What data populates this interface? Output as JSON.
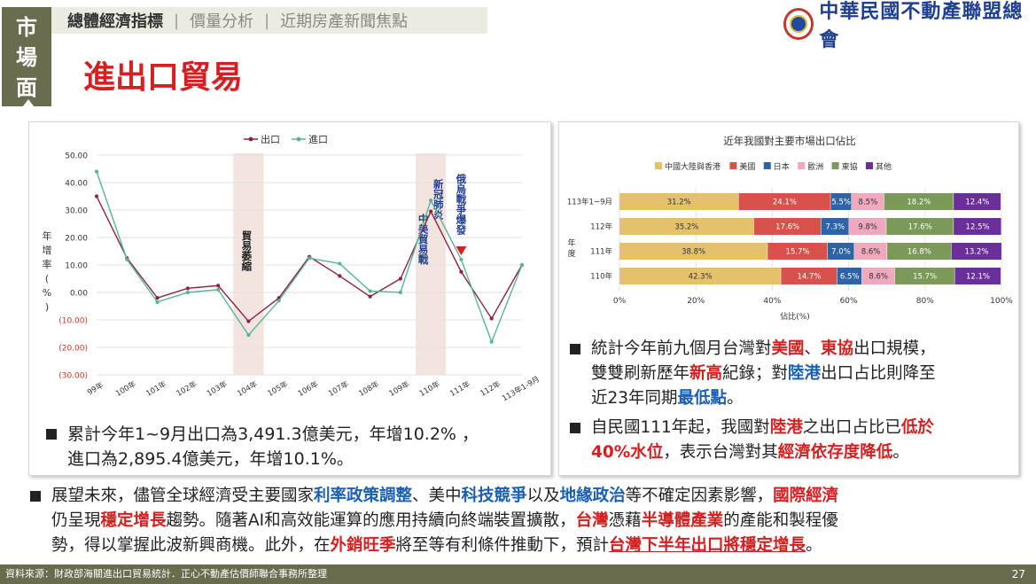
{
  "side_tab": {
    "chars": [
      "市",
      "場",
      "面"
    ]
  },
  "nav": {
    "tabs": [
      "總體經濟指標",
      "價量分析",
      "近期房產新聞焦點"
    ],
    "separator": "|"
  },
  "logo": {
    "text": "中華民國不動產聯盟總會"
  },
  "page_title": "進出口貿易",
  "left_chart": {
    "legend": [
      "出口",
      "進口"
    ],
    "y_axis_title": [
      "年",
      "增",
      "率",
      "(",
      "%",
      ")"
    ],
    "y_ticks": [
      "50.00",
      "40.00",
      "30.00",
      "20.00",
      "10.00",
      "0.00",
      "(10.00)",
      "(20.00)",
      "(30.00)"
    ],
    "x_ticks": [
      "99年",
      "100年",
      "101年",
      "102年",
      "103年",
      "104年",
      "105年",
      "106年",
      "107年",
      "108年",
      "109年",
      "110年",
      "111年",
      "112年",
      "113年1-9月"
    ],
    "annotations": [
      "貿易萎縮",
      "中美貿易戰",
      "新冠肺炎",
      "俄烏戰爭爆發"
    ]
  },
  "chart_data": [
    {
      "type": "line",
      "categories": [
        "99年",
        "100年",
        "101年",
        "102年",
        "103年",
        "104年",
        "105年",
        "106年",
        "107年",
        "108年",
        "109年",
        "110年",
        "111年",
        "112年",
        "113年1-9月"
      ],
      "series": [
        {
          "name": "出口",
          "color": "#8b2244",
          "values": [
            35,
            12.5,
            -2,
            1.5,
            2.5,
            -10.5,
            -2,
            13,
            6,
            -1.5,
            5,
            29.5,
            7.5,
            -9.5,
            10
          ]
        },
        {
          "name": "進口",
          "color": "#59b39a",
          "values": [
            44,
            12,
            -3.5,
            0,
            1,
            -15.5,
            -3,
            12.5,
            10.5,
            0.5,
            0,
            33.5,
            12,
            -18,
            10
          ]
        }
      ],
      "ylabel": "年增率(%)",
      "ylim": [
        -30,
        50
      ],
      "grid": true,
      "legend": "top"
    },
    {
      "type": "bar",
      "stacked": true,
      "orientation": "horizontal",
      "title": "近年我國對主要市場出口佔比",
      "xlabel": "佔比(%)",
      "ylabel": "年度",
      "categories": [
        "113年1~9月",
        "112年",
        "111年",
        "110年"
      ],
      "series": [
        {
          "name": "中國大陸與香港",
          "color": "#e5c16a",
          "values": [
            31.2,
            35.2,
            38.8,
            42.3
          ]
        },
        {
          "name": "美國",
          "color": "#d9514b",
          "values": [
            24.1,
            17.6,
            15.7,
            14.7
          ]
        },
        {
          "name": "日本",
          "color": "#2e63a8",
          "values": [
            5.5,
            7.3,
            7.0,
            6.5
          ]
        },
        {
          "name": "歐洲",
          "color": "#f0a8bc",
          "values": [
            8.5,
            9.8,
            8.6,
            8.6
          ]
        },
        {
          "name": "東協",
          "color": "#7b9a57",
          "values": [
            18.2,
            17.6,
            16.8,
            15.7
          ]
        },
        {
          "name": "其他",
          "color": "#6b2f9c",
          "values": [
            12.4,
            12.5,
            13.2,
            12.1
          ]
        }
      ],
      "x_ticks": [
        "0%",
        "20%",
        "40%",
        "60%",
        "80%",
        "100%"
      ],
      "xlim": [
        0,
        100
      ],
      "legend": "top"
    }
  ],
  "bullets": {
    "left": {
      "parts": [
        {
          "t": "累計今年1~9月出口為3,491.3億美元，年增10.2% ，"
        },
        {
          "t": "進口為2,895.4億美元，年增10.1%。",
          "br": true
        }
      ]
    },
    "right1": {
      "parts": [
        {
          "t": "統計今年前九個月台灣對"
        },
        {
          "t": "美國",
          "s": "red"
        },
        {
          "t": "、"
        },
        {
          "t": "東協",
          "s": "red"
        },
        {
          "t": "出口規模，"
        },
        {
          "t": "雙雙刷新歷年",
          "br": true
        },
        {
          "t": "新高",
          "s": "red"
        },
        {
          "t": "紀錄；對"
        },
        {
          "t": "陸港",
          "s": "blue"
        },
        {
          "t": "出口占比則降至"
        },
        {
          "t": "近23年同期",
          "br": true
        },
        {
          "t": "最低點",
          "s": "blue"
        },
        {
          "t": "。"
        }
      ]
    },
    "right2": {
      "parts": [
        {
          "t": "自民國111年起，我國對"
        },
        {
          "t": "陸港",
          "s": "red"
        },
        {
          "t": "之出口占比已"
        },
        {
          "t": "低於",
          "s": "red"
        },
        {
          "t": "40%水位",
          "s": "red",
          "br": true
        },
        {
          "t": "，表示台灣對其"
        },
        {
          "t": "經濟依存度降低",
          "s": "red"
        },
        {
          "t": "。"
        }
      ]
    },
    "bottom": {
      "parts": [
        {
          "t": "展望未來，儘管全球經濟受主要國家"
        },
        {
          "t": "利率政策調整",
          "s": "blue"
        },
        {
          "t": "、美中"
        },
        {
          "t": "科技競爭",
          "s": "blue"
        },
        {
          "t": "以及"
        },
        {
          "t": "地緣政治",
          "s": "blue"
        },
        {
          "t": "等不確定因素影響，"
        },
        {
          "t": "國際經濟",
          "s": "red"
        },
        {
          "t": "仍呈現",
          "br": true
        },
        {
          "t": "穩定增長",
          "s": "red"
        },
        {
          "t": "趨勢。隨著AI和高效能運算的應用持續向終端裝置擴散，"
        },
        {
          "t": "台灣",
          "s": "red"
        },
        {
          "t": "憑藉"
        },
        {
          "t": "半導體產業",
          "s": "red"
        },
        {
          "t": "的產能和製程優"
        },
        {
          "t": "勢，得以掌握此波新興商機。此外，在",
          "br": true
        },
        {
          "t": "外銷旺季",
          "s": "red"
        },
        {
          "t": "將至等有利條件推動下，預計"
        },
        {
          "t": "台灣下半年出口將穩定增長",
          "s": "ul"
        },
        {
          "t": "。"
        }
      ]
    }
  },
  "footer": {
    "source": "資料來源：財政部海關進出口貿易統計．正心不動產估價師聯合事務所整理",
    "page_number": "27"
  }
}
